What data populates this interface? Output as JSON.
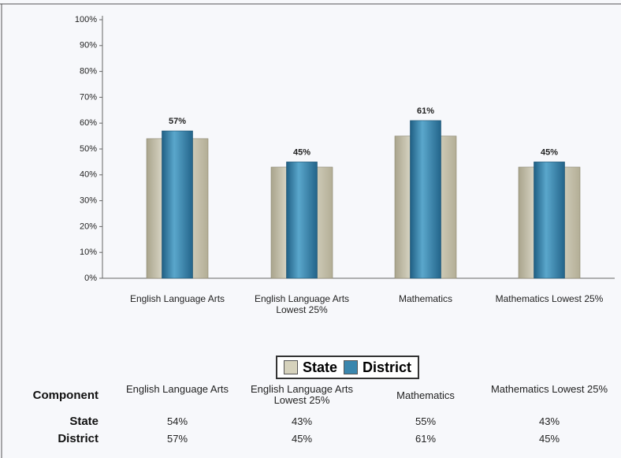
{
  "chart_data": {
    "type": "bar",
    "categories": [
      "English Language Arts",
      "English Language Arts Lowest 25%",
      "Mathematics",
      "Mathematics Lowest 25%"
    ],
    "series": [
      {
        "name": "State",
        "color": "#d6d2bc",
        "values": [
          54,
          43,
          55,
          43
        ],
        "value_labels": [
          "54%",
          "43%",
          "55%",
          "43%"
        ]
      },
      {
        "name": "District",
        "color": "#3a86ad",
        "values": [
          57,
          45,
          61,
          45
        ],
        "value_labels": [
          "57%",
          "45%",
          "61%",
          "45%"
        ]
      }
    ],
    "ylim": [
      0,
      100
    ],
    "yticks": [
      {
        "value": 0,
        "label": "0%"
      },
      {
        "value": 10,
        "label": "10%"
      },
      {
        "value": 20,
        "label": "20%"
      },
      {
        "value": 30,
        "label": "30%"
      },
      {
        "value": 40,
        "label": "40%"
      },
      {
        "value": 50,
        "label": "50%"
      },
      {
        "value": 60,
        "label": "60%"
      },
      {
        "value": 70,
        "label": "70%"
      },
      {
        "value": 80,
        "label": "80%"
      },
      {
        "value": 90,
        "label": "90%"
      },
      {
        "value": 100,
        "label": "100%"
      }
    ],
    "table_header": "Component"
  }
}
